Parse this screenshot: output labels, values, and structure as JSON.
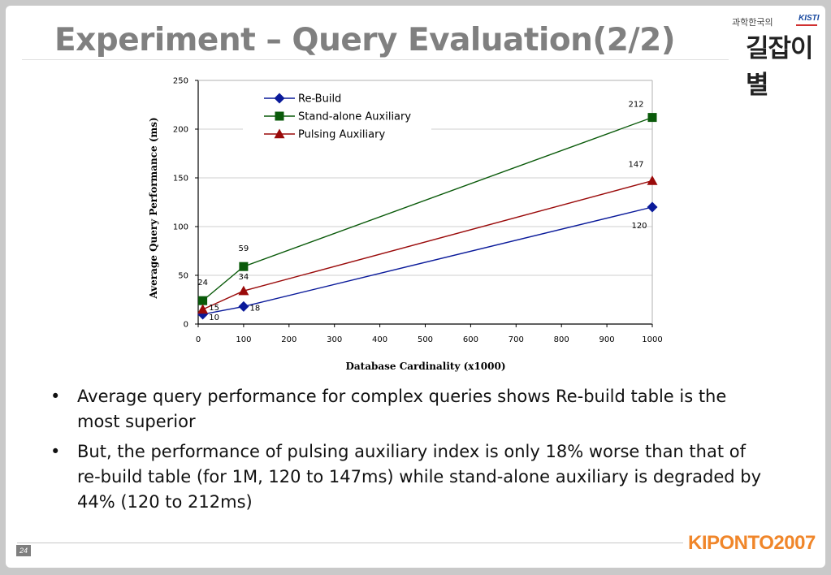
{
  "slide": {
    "title": "Experiment – Query Evaluation(2/2)",
    "page_number": "24",
    "brand": "KIPONTO2007",
    "logo": {
      "small_text": "과학한국의",
      "main_text": "길잡이별",
      "org": "KISTI"
    }
  },
  "bullets": [
    "Average query performance for complex queries shows Re-build table is the most superior",
    "But, the performance of pulsing auxiliary index is only 18% worse than that of re-build table (for 1M, 120 to 147ms) while stand-alone auxiliary is degraded by 44% (120 to 212ms)"
  ],
  "chart_data": {
    "type": "line",
    "xlabel": "Database Cardinality (x1000)",
    "ylabel": "Average Query Performance (ms)",
    "xlim": [
      0,
      1000
    ],
    "ylim": [
      0,
      250
    ],
    "x_ticks": [
      "0",
      "100",
      "200",
      "300",
      "400",
      "500",
      "600",
      "700",
      "800",
      "900",
      "1000"
    ],
    "y_ticks": [
      "0",
      "50",
      "100",
      "150",
      "200",
      "250"
    ],
    "grid": true,
    "legend_position": "top-left",
    "x": [
      10,
      100,
      1000
    ],
    "series": [
      {
        "name": "Re-Build",
        "values": [
          10,
          18,
          120
        ],
        "labels": [
          "10",
          "18",
          "120"
        ],
        "color": "#0a1a9a",
        "marker": "diamond"
      },
      {
        "name": "Stand-alone Auxiliary",
        "values": [
          24,
          59,
          212
        ],
        "labels": [
          "24",
          "59",
          "212"
        ],
        "color": "#0a5a0a",
        "marker": "square"
      },
      {
        "name": "Pulsing Auxiliary",
        "values": [
          15,
          34,
          147
        ],
        "labels": [
          "15",
          "34",
          "147"
        ],
        "color": "#9a0a0a",
        "marker": "triangle"
      }
    ]
  }
}
